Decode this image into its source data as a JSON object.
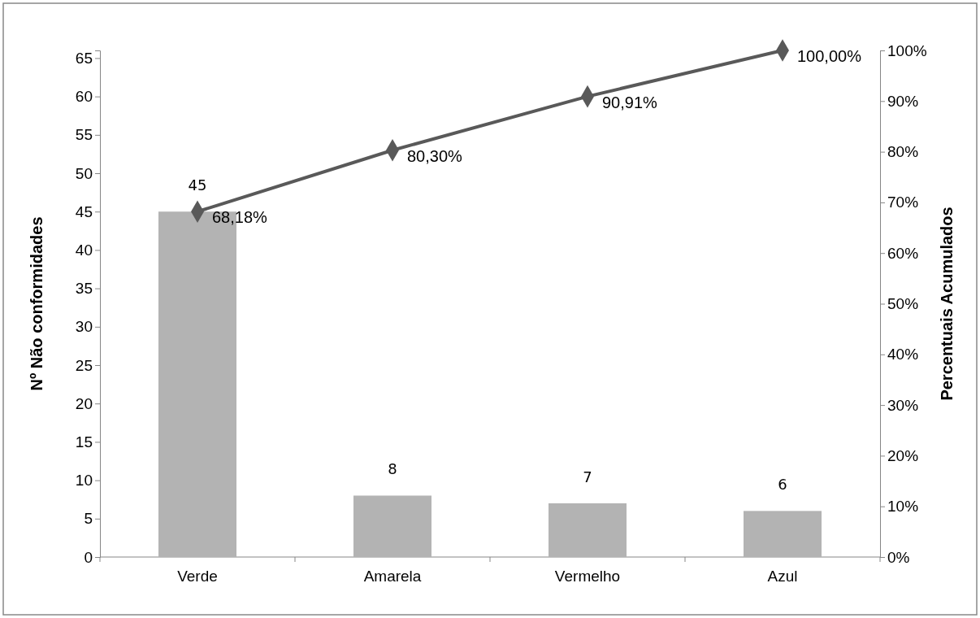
{
  "chart_data": {
    "type": "bar",
    "ylabel": "Nº Não conformidades",
    "y2label": "Percentuais Acumulados",
    "categories": [
      "Verde",
      "Amarela",
      "Vermelho",
      "Azul"
    ],
    "series": [
      {
        "color": "#b3b3b3",
        "values": [
          45,
          8,
          7,
          6
        ],
        "value_labels": [
          "45",
          "8",
          "7",
          "6"
        ]
      },
      {
        "type": "line",
        "axis": "y2",
        "color": "#595959",
        "marker": "diamond",
        "values": [
          68.18,
          80.3,
          90.91,
          100
        ],
        "value_labels": [
          "68,18%",
          "80,30%",
          "90,91%",
          "100,00%"
        ]
      }
    ],
    "ylim": [
      0,
      66
    ],
    "yticks": [
      0,
      5,
      10,
      15,
      20,
      25,
      30,
      35,
      40,
      45,
      50,
      55,
      60,
      65
    ],
    "y2lim": [
      0,
      100
    ],
    "y2ticks": [
      {
        "value": 0,
        "label": "0%"
      },
      {
        "value": 10,
        "label": "10%"
      },
      {
        "value": 20,
        "label": "20%"
      },
      {
        "value": 30,
        "label": "30%"
      },
      {
        "value": 40,
        "label": "40%"
      },
      {
        "value": 50,
        "label": "50%"
      },
      {
        "value": 60,
        "label": "60%"
      },
      {
        "value": 70,
        "label": "70%"
      },
      {
        "value": 80,
        "label": "80%"
      },
      {
        "value": 90,
        "label": "90%"
      },
      {
        "value": 100,
        "label": "100%"
      }
    ],
    "grid": false
  }
}
